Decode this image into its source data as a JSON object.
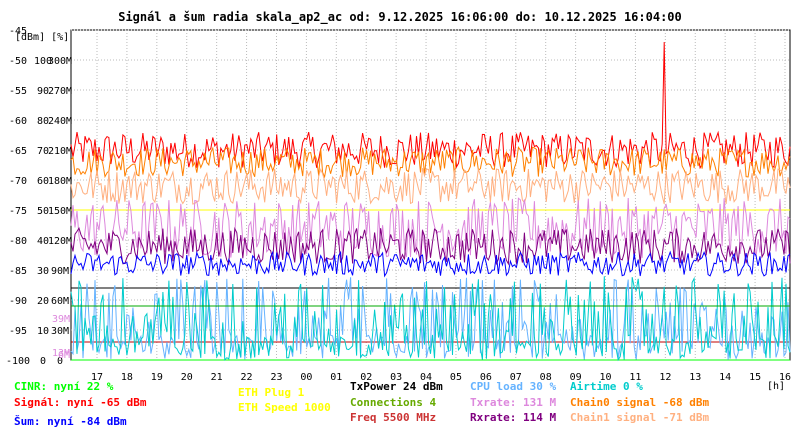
{
  "title": "Signál a šum radia skala_ap2_ac od: 9.12.2025 16:06:00 do: 10.12.2025 16:04:00",
  "chart_data": {
    "type": "line",
    "title": "Signál a šum radia skala_ap2_ac od: 9.12.2025 16:06:00 do: 10.12.2025 16:04:00",
    "ylabel": "[dBm] [%]",
    "xlabel": "[h]",
    "x_ticks": [
      "17",
      "18",
      "19",
      "20",
      "21",
      "22",
      "23",
      "00",
      "01",
      "02",
      "03",
      "04",
      "05",
      "06",
      "07",
      "08",
      "09",
      "10",
      "11",
      "12",
      "13",
      "14",
      "15",
      "16"
    ],
    "y_ticks": [
      {
        "dbm": "-45",
        "pct": "",
        "rate": ""
      },
      {
        "dbm": "-50",
        "pct": "100",
        "rate": "300M"
      },
      {
        "dbm": "-55",
        "pct": "90",
        "rate": "270M"
      },
      {
        "dbm": "-60",
        "pct": "80",
        "rate": "240M"
      },
      {
        "dbm": "-65",
        "pct": "70",
        "rate": "210M"
      },
      {
        "dbm": "-70",
        "pct": "60",
        "rate": "180M"
      },
      {
        "dbm": "-75",
        "pct": "50",
        "rate": "150M"
      },
      {
        "dbm": "-80",
        "pct": "40",
        "rate": "120M"
      },
      {
        "dbm": "-85",
        "pct": "30",
        "rate": "90M"
      },
      {
        "dbm": "-90",
        "pct": "20",
        "rate": "60M"
      },
      {
        "dbm": "-95",
        "pct": "10",
        "rate": "30M"
      },
      {
        "dbm": "-100",
        "pct": "0",
        "rate": "0"
      }
    ],
    "inline_labels": [
      {
        "text": "39M",
        "color": "#dd88dd"
      },
      {
        "text": "13M",
        "color": "#dd88dd"
      },
      {
        "text": "6M",
        "color": "#dd88dd"
      }
    ],
    "ylim_dbm": [
      -100,
      -45
    ],
    "grid": true,
    "series": [
      {
        "name": "Signál",
        "color": "#ff0000",
        "level_dbm": -65,
        "spread": 3,
        "spike_x": 0.825,
        "spike_dbm": -47
      },
      {
        "name": "Chain0 signal",
        "color": "#ff8000",
        "level_dbm": -67,
        "spread": 2.5
      },
      {
        "name": "Chain1 signal",
        "color": "#ffb080",
        "level_dbm": -71,
        "spread": 3
      },
      {
        "name": "Txrate",
        "color": "#dd88dd",
        "level_dbm": -78,
        "spread": 5
      },
      {
        "name": "Rxrate",
        "color": "#800080",
        "level_dbm": -81,
        "spread": 3
      },
      {
        "name": "Šum",
        "color": "#0000ff",
        "level_dbm": -84,
        "spread": 2
      },
      {
        "name": "CINR",
        "color": "#00ff00",
        "level_dbm": -100,
        "spread": 0
      },
      {
        "name": "CPU load",
        "color": "#66b3ff",
        "level_dbm": -93,
        "spread": 7
      },
      {
        "name": "Airtime",
        "color": "#00cccc",
        "level_dbm": -96,
        "spread": 10
      },
      {
        "name": "Connections",
        "color": "#00aa00",
        "level_dbm": -91,
        "spread": 0
      }
    ],
    "reference_lines": [
      {
        "name": "ETH Plug",
        "color": "#ffff00",
        "value_dbm": -75
      },
      {
        "name": "TxPower",
        "color": "#000000",
        "value_dbm": -88
      },
      {
        "name": "Freq",
        "color": "#c00000",
        "value_dbm": -97
      }
    ]
  },
  "legend": {
    "cinr": "CINR: nyní 22 %",
    "signal": "Signál: nyní -65 dBm",
    "noise": "Šum: nyní -84 dBm",
    "eth_plug": "ETH Plug 1",
    "eth_speed": "ETH Speed 1000",
    "txpower": "TxPower 24 dBm",
    "connections": "Connections 4",
    "freq": "Freq 5500 MHz",
    "cpu": "CPU load 30 %",
    "txrate": "Txrate: 131 M",
    "rxrate": "Rxrate: 114 M",
    "airtime": "Airtime 0 %",
    "chain0": "Chain0 signal -68 dBm",
    "chain1": "Chain1 signal -71 dBm"
  },
  "colors": {
    "cinr": "#00ff00",
    "signal": "#ff0000",
    "noise": "#0000ff",
    "eth": "#ffff00",
    "txpower": "#000000",
    "connections": "#66aa00",
    "freq": "#cc3333",
    "cpu": "#66b3ff",
    "txrate": "#dd88dd",
    "rxrate": "#800080",
    "airtime": "#00cccc",
    "chain0": "#ff8000",
    "chain1": "#ffb080"
  }
}
